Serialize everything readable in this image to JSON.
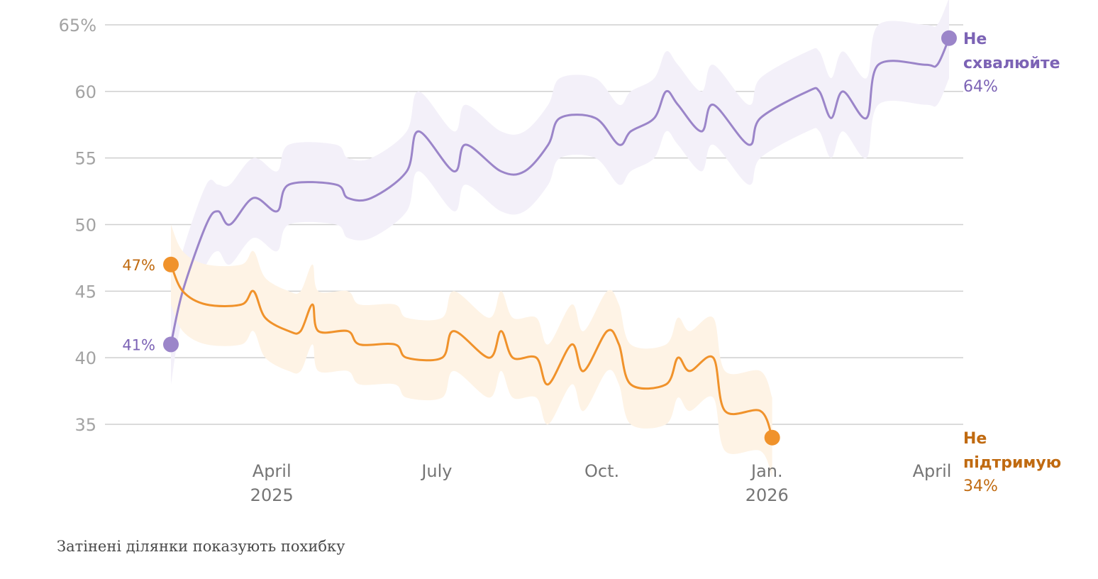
{
  "chart_data": {
    "type": "line",
    "ylim": [
      32,
      65
    ],
    "yticks": [
      35,
      40,
      45,
      50,
      55,
      60,
      65
    ],
    "ytick_labels": [
      "35",
      "40",
      "45",
      "50",
      "55",
      "60",
      "65%"
    ],
    "xlim": [
      0,
      72
    ],
    "xticks": [
      {
        "t": 10,
        "line1": "April",
        "line2": "2025"
      },
      {
        "t": 24,
        "line1": "July",
        "line2": ""
      },
      {
        "t": 38,
        "line1": "Oct.",
        "line2": ""
      },
      {
        "t": 52,
        "line1": "Jan.",
        "line2": "2026"
      },
      {
        "t": 66,
        "line1": "April",
        "line2": ""
      }
    ],
    "series": [
      {
        "name": "Не схвалюйте",
        "label_line1": "Не",
        "label_line2": "схвалюйте",
        "end_label": "64%",
        "start_label": "41%",
        "color": "#9b85c9",
        "label_color": "#7c63b5",
        "band_color": "#f3f0f9",
        "points": [
          [
            0,
            41
          ],
          [
            1,
            45
          ],
          [
            3,
            50
          ],
          [
            4,
            51
          ],
          [
            5,
            50
          ],
          [
            7,
            52
          ],
          [
            9,
            51
          ],
          [
            10,
            53
          ],
          [
            14,
            53
          ],
          [
            15,
            52
          ],
          [
            17,
            52
          ],
          [
            20,
            54
          ],
          [
            21,
            57
          ],
          [
            24,
            54
          ],
          [
            25,
            56
          ],
          [
            28,
            54
          ],
          [
            30,
            54
          ],
          [
            32,
            56
          ],
          [
            33,
            58
          ],
          [
            36,
            58
          ],
          [
            38,
            56
          ],
          [
            39,
            57
          ],
          [
            41,
            58
          ],
          [
            42,
            60
          ],
          [
            43,
            59
          ],
          [
            45,
            57
          ],
          [
            46,
            59
          ],
          [
            49,
            56
          ],
          [
            50,
            58
          ],
          [
            54,
            60
          ],
          [
            55,
            60
          ],
          [
            56,
            58
          ],
          [
            57,
            60
          ],
          [
            59,
            58
          ],
          [
            60,
            62
          ],
          [
            64,
            62
          ],
          [
            65,
            62
          ],
          [
            66,
            64
          ]
        ],
        "band": [
          [
            0,
            38,
            44
          ],
          [
            1,
            43,
            48
          ],
          [
            3,
            47,
            53
          ],
          [
            4,
            48,
            53
          ],
          [
            5,
            47,
            53
          ],
          [
            7,
            49,
            55
          ],
          [
            9,
            48,
            54
          ],
          [
            10,
            50,
            56
          ],
          [
            14,
            50,
            56
          ],
          [
            15,
            49,
            55
          ],
          [
            17,
            49,
            55
          ],
          [
            20,
            51,
            57
          ],
          [
            21,
            54,
            60
          ],
          [
            24,
            51,
            57
          ],
          [
            25,
            53,
            59
          ],
          [
            28,
            51,
            57
          ],
          [
            30,
            51,
            57
          ],
          [
            32,
            53,
            59
          ],
          [
            33,
            55,
            61
          ],
          [
            36,
            55,
            61
          ],
          [
            38,
            53,
            59
          ],
          [
            39,
            54,
            60
          ],
          [
            41,
            55,
            61
          ],
          [
            42,
            57,
            63
          ],
          [
            43,
            56,
            62
          ],
          [
            45,
            54,
            60
          ],
          [
            46,
            56,
            62
          ],
          [
            49,
            53,
            59
          ],
          [
            50,
            55,
            61
          ],
          [
            54,
            57,
            63
          ],
          [
            55,
            57,
            63
          ],
          [
            56,
            55,
            61
          ],
          [
            57,
            57,
            63
          ],
          [
            59,
            55,
            61
          ],
          [
            60,
            59,
            65
          ],
          [
            64,
            59,
            65
          ],
          [
            65,
            59,
            65
          ],
          [
            66,
            61,
            67
          ]
        ]
      },
      {
        "name": "Не підтримую",
        "label_line1": "Не",
        "label_line2": "підтримую",
        "end_label": "34%",
        "start_label": "47%",
        "color": "#f0922b",
        "label_color": "#c06a10",
        "band_color": "#fef3e5",
        "points": [
          [
            0,
            47
          ],
          [
            1,
            45
          ],
          [
            3,
            44
          ],
          [
            6,
            44
          ],
          [
            7,
            45
          ],
          [
            8,
            43
          ],
          [
            10,
            42
          ],
          [
            11,
            42
          ],
          [
            12,
            44
          ],
          [
            12.5,
            42
          ],
          [
            15,
            42
          ],
          [
            16,
            41
          ],
          [
            19,
            41
          ],
          [
            20,
            40
          ],
          [
            23,
            40
          ],
          [
            24,
            42
          ],
          [
            27,
            40
          ],
          [
            28,
            42
          ],
          [
            29,
            40
          ],
          [
            31,
            40
          ],
          [
            32,
            38
          ],
          [
            34,
            41
          ],
          [
            35,
            39
          ],
          [
            37,
            42
          ],
          [
            38,
            41
          ],
          [
            39,
            38
          ],
          [
            42,
            38
          ],
          [
            43,
            40
          ],
          [
            44,
            39
          ],
          [
            46,
            40
          ],
          [
            47,
            36
          ],
          [
            50,
            36
          ],
          [
            51,
            34
          ]
        ],
        "band": [
          [
            0,
            44,
            50
          ],
          [
            1,
            42,
            48
          ],
          [
            3,
            41,
            47
          ],
          [
            6,
            41,
            47
          ],
          [
            7,
            42,
            48
          ],
          [
            8,
            40,
            46
          ],
          [
            10,
            39,
            45
          ],
          [
            11,
            39,
            45
          ],
          [
            12,
            41,
            47
          ],
          [
            12.5,
            39,
            45
          ],
          [
            15,
            39,
            45
          ],
          [
            16,
            38,
            44
          ],
          [
            19,
            38,
            44
          ],
          [
            20,
            37,
            43
          ],
          [
            23,
            37,
            43
          ],
          [
            24,
            39,
            45
          ],
          [
            27,
            37,
            43
          ],
          [
            28,
            39,
            45
          ],
          [
            29,
            37,
            43
          ],
          [
            31,
            37,
            43
          ],
          [
            32,
            35,
            41
          ],
          [
            34,
            38,
            44
          ],
          [
            35,
            36,
            42
          ],
          [
            37,
            39,
            45
          ],
          [
            38,
            38,
            44
          ],
          [
            39,
            35,
            41
          ],
          [
            42,
            35,
            41
          ],
          [
            43,
            37,
            43
          ],
          [
            44,
            36,
            42
          ],
          [
            46,
            37,
            43
          ],
          [
            47,
            33,
            39
          ],
          [
            50,
            33,
            39
          ],
          [
            51,
            31,
            37
          ]
        ]
      }
    ],
    "note": "Затінені ділянки показують похибку"
  }
}
